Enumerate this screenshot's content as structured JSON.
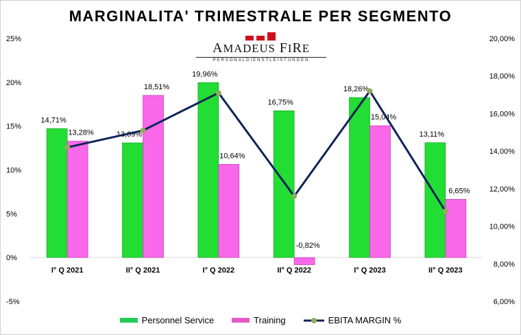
{
  "chart_data": {
    "type": "bar",
    "title": "MARGINALITA' TRIMESTRALE PER SEGMENTO",
    "categories": [
      "I° Q 2021",
      "II° Q 2021",
      "I° Q 2022",
      "II° Q 2022",
      "I° Q 2023",
      "II° Q 2023"
    ],
    "series": [
      {
        "name": "Personnel Service",
        "type": "bar",
        "axis": "left",
        "color": "#22dd33",
        "values": [
          14.71,
          13.09,
          19.96,
          16.75,
          18.26,
          13.11
        ],
        "labels": [
          "14,71%",
          "13,09%",
          "19,96%",
          "16,75%",
          "18,26%",
          "13,11%"
        ]
      },
      {
        "name": "Training",
        "type": "bar",
        "axis": "left",
        "color": "#f060e0",
        "values": [
          13.28,
          18.51,
          10.64,
          -0.82,
          15.04,
          6.65
        ],
        "labels": [
          "13,28%",
          "18,51%",
          "10,64%",
          "-0,82%",
          "15,04%",
          "6,65%"
        ]
      },
      {
        "name": "EBITA MARGIN %",
        "type": "line",
        "axis": "right",
        "color": "#0d2257",
        "marker_color": "#8fae5a",
        "values": [
          14.2,
          15.1,
          17.1,
          11.6,
          17.2,
          10.8
        ]
      }
    ],
    "left_axis": {
      "ylim": [
        -5,
        25
      ],
      "ticks": [
        "-5%",
        "0%",
        "5%",
        "10%",
        "15%",
        "20%",
        "25%"
      ],
      "tick_values": [
        -5,
        0,
        5,
        10,
        15,
        20,
        25
      ]
    },
    "right_axis": {
      "ylim": [
        6,
        20
      ],
      "ticks": [
        "6,00%",
        "8,00%",
        "10,00%",
        "12,00%",
        "14,00%",
        "16,00%",
        "18,00%",
        "20,00%"
      ],
      "tick_values": [
        6,
        8,
        10,
        12,
        14,
        16,
        18,
        20
      ]
    },
    "grid": false,
    "legend_position": "bottom"
  },
  "logo": {
    "name": "AMADEUS FIRE",
    "tagline": "PERSONALDIENSTLEISTUNGEN"
  }
}
